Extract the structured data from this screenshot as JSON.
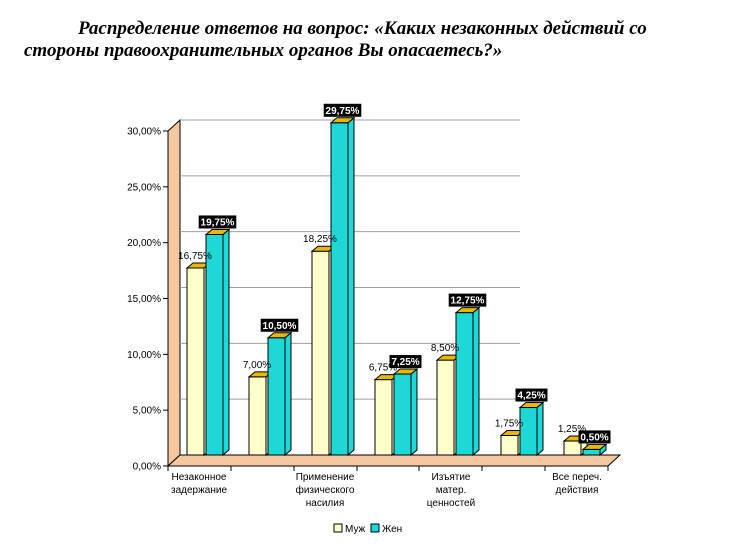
{
  "title": {
    "line1": "Распределение ответов на вопрос: «Каких незаконных действий со",
    "line2": "стороны правоохранительных органов Вы опасаетесь?»"
  },
  "chart_data": {
    "type": "bar",
    "categories": [
      [
        "Незаконное",
        "задержание"
      ],
      [
        "",
        ""
      ],
      [
        "Применение",
        "физического",
        "насилия"
      ],
      [
        ""
      ],
      [
        "Изъятие",
        "матер.",
        "ценностей"
      ],
      [
        ""
      ],
      [
        "Все переч.",
        "действия"
      ]
    ],
    "category_tick_labels": [
      "Незаконное задержание",
      "Применение физического насилия",
      "Изъятие матер. ценностей",
      "Все переч. действия"
    ],
    "series": [
      {
        "name": "Муж",
        "values": [
          16.75,
          7.0,
          18.25,
          6.75,
          8.5,
          1.75,
          1.25
        ],
        "labels": [
          "16,75%",
          "7,00%",
          "18,25%",
          "6,75%",
          "8,50%",
          "1,75%",
          "1,25%"
        ]
      },
      {
        "name": "Жен",
        "values": [
          19.75,
          10.5,
          29.75,
          7.25,
          12.75,
          4.25,
          0.5
        ],
        "labels": [
          "19,75%",
          "10,50%",
          "29,75%",
          "7,25%",
          "12,75%",
          "4,25%",
          "0,50%"
        ]
      }
    ],
    "y_ticks": [
      "0,00%",
      "5,00%",
      "10,00%",
      "15,00%",
      "20,00%",
      "25,00%",
      "30,00%"
    ],
    "ylim": [
      0,
      30
    ],
    "grid": true,
    "legend_position": "bottom",
    "colors": {
      "male": "#ffffcc",
      "female": "#1ed7d7",
      "wall": "#f5c8a0",
      "cap": "#e6b800",
      "frame": "#000000"
    }
  }
}
